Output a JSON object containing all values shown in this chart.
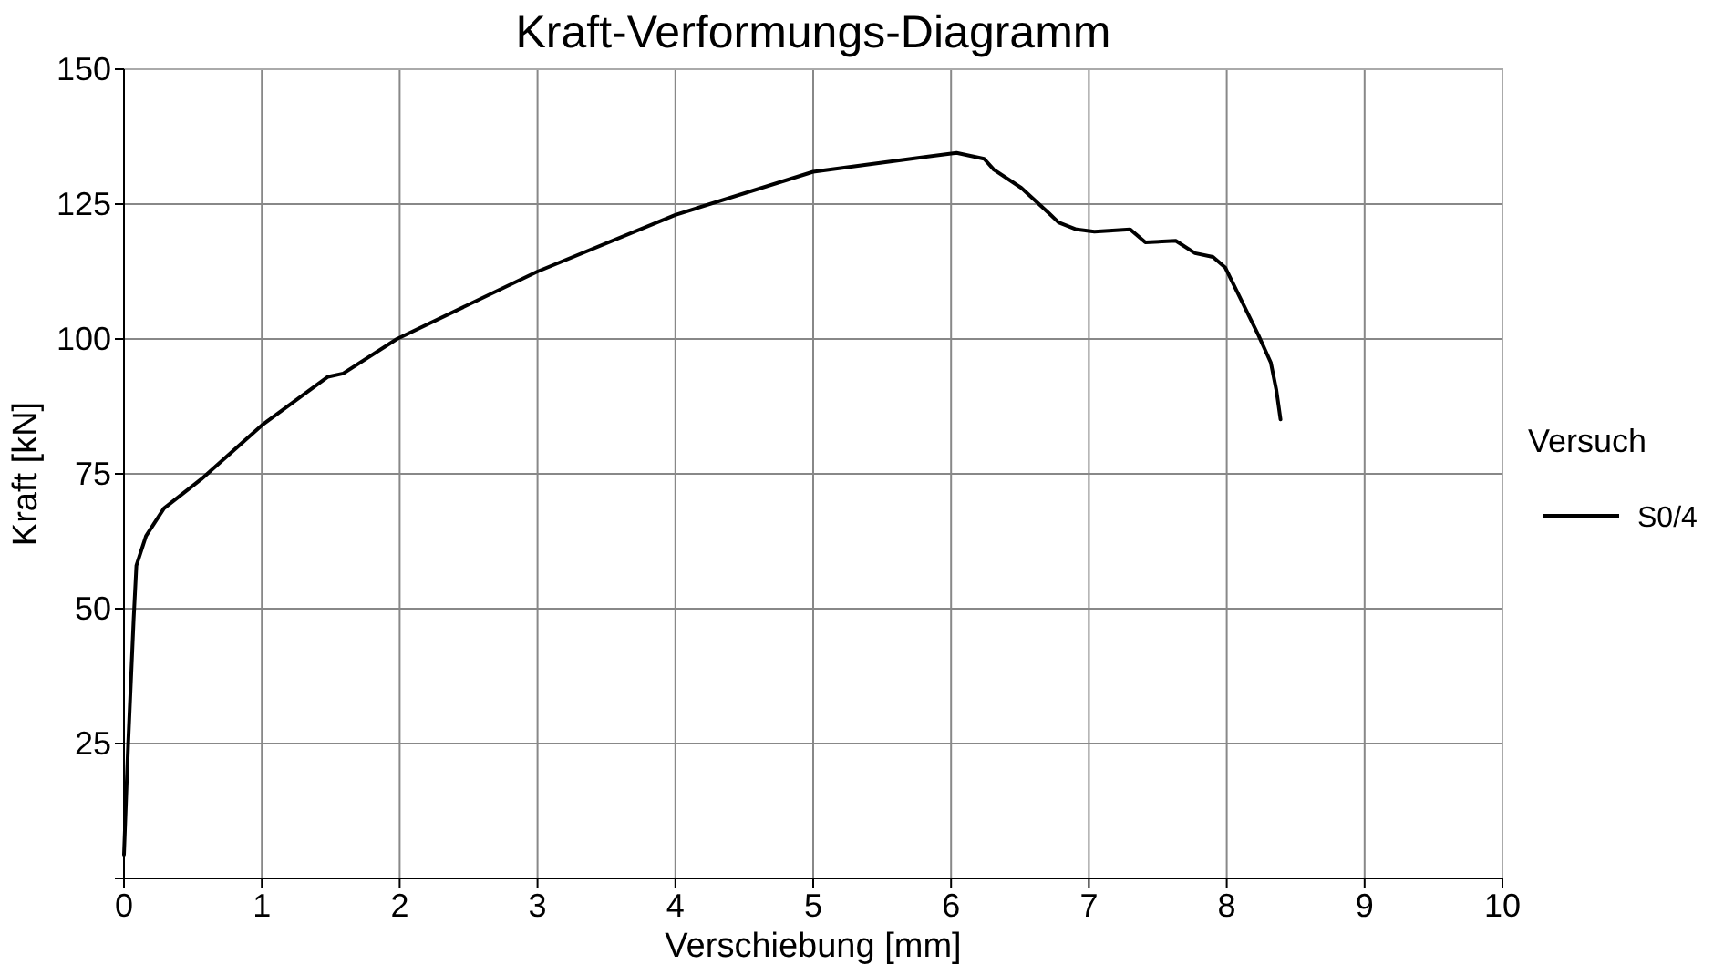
{
  "chart_data": {
    "type": "line",
    "title": "Kraft-Verformungs-Diagramm",
    "xlabel": "Verschiebung [mm]",
    "ylabel": "Kraft [kN]",
    "legend_title": "Versuch",
    "legend": "right",
    "grid": true,
    "xlim": [
      0,
      10
    ],
    "ylim": [
      0,
      150
    ],
    "xticks": [
      0,
      1,
      2,
      3,
      4,
      5,
      6,
      7,
      8,
      9,
      10
    ],
    "yticks": [
      {
        "value": 0,
        "label": null
      },
      25,
      50,
      75,
      100,
      125,
      150
    ],
    "series": [
      {
        "name": "S0/4",
        "color": "#000000",
        "x": [
          0,
          0.03,
          0.07,
          0.09,
          0.16,
          0.29,
          0.56,
          1,
          1.48,
          1.59,
          1.98,
          3,
          4,
          5,
          5.71,
          6.04,
          6.24,
          6.31,
          6.51,
          6.71,
          6.78,
          6.91,
          7.04,
          7.3,
          7.41,
          7.63,
          7.77,
          7.9,
          7.99,
          8.23,
          8.32,
          8.36,
          8.39
        ],
        "values": [
          4.4,
          24.7,
          48,
          58,
          63.5,
          68.6,
          74,
          84,
          93,
          93.6,
          100,
          112.5,
          123,
          131,
          133.4,
          134.5,
          133.4,
          131.4,
          128,
          123.3,
          121.6,
          120.3,
          119.9,
          120.3,
          117.9,
          118.2,
          115.9,
          115.2,
          113.2,
          100.7,
          95.6,
          90.5,
          85.1
        ]
      }
    ]
  }
}
